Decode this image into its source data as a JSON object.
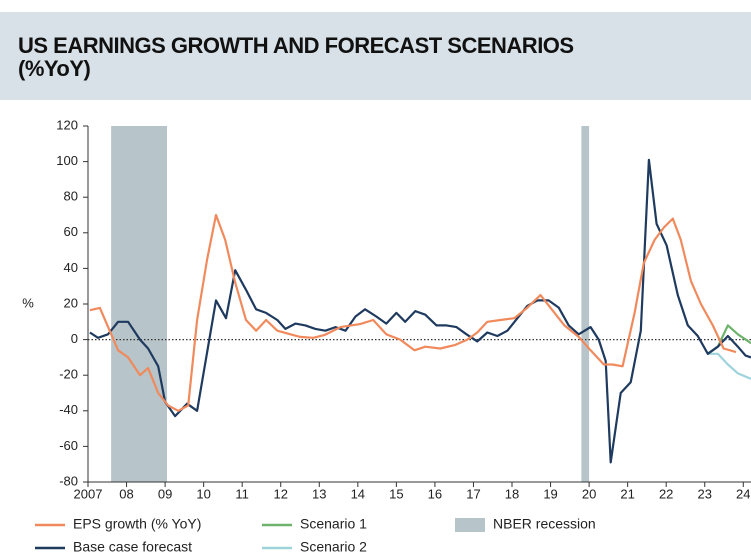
{
  "chart_data": {
    "type": "line",
    "title": "US EARNINGS GROWTH AND FORECAST SCENARIOS (%YoY)",
    "ylabel": "%",
    "xlim": [
      2007,
      2024.2
    ],
    "ylim": [
      -80,
      120
    ],
    "yticks": [
      -80,
      -60,
      -40,
      -20,
      0,
      20,
      40,
      60,
      80,
      100,
      120
    ],
    "xticks": [
      2007,
      {
        "value": 2008,
        "label": "08"
      },
      {
        "value": 2009,
        "label": "09"
      },
      {
        "value": 2010,
        "label": "10"
      },
      {
        "value": 2011,
        "label": "11"
      },
      {
        "value": 2012,
        "label": "12"
      },
      {
        "value": 2013,
        "label": "13"
      },
      {
        "value": 2014,
        "label": "14"
      },
      {
        "value": 2015,
        "label": "15"
      },
      {
        "value": 2016,
        "label": "16"
      },
      {
        "value": 2017,
        "label": "17"
      },
      {
        "value": 2018,
        "label": "18"
      },
      {
        "value": 2019,
        "label": "19"
      },
      {
        "value": 2020,
        "label": "20"
      },
      {
        "value": 2021,
        "label": "21"
      },
      {
        "value": 2022,
        "label": "22"
      },
      {
        "value": 2023,
        "label": "23"
      },
      {
        "value": 2024,
        "label": "24"
      }
    ],
    "zero_line": true,
    "recessions": {
      "name": "NBER recession",
      "color": "#b7c4c9",
      "ranges": [
        [
          2007.6,
          2009.05
        ],
        [
          2019.8,
          2020.0
        ]
      ]
    },
    "series": [
      {
        "name": "EPS growth (% YoY)",
        "color": "#f08a5d",
        "x": [
          2007.05,
          2007.31,
          2007.78,
          2008.04,
          2008.35,
          2008.56,
          2008.82,
          2009.08,
          2009.34,
          2009.6,
          2009.83,
          2010.09,
          2010.32,
          2010.56,
          2010.82,
          2011.1,
          2011.36,
          2011.62,
          2011.91,
          2012.25,
          2012.51,
          2012.84,
          2013.13,
          2013.55,
          2014.06,
          2014.4,
          2014.74,
          2015.1,
          2015.47,
          2015.75,
          2016.14,
          2016.53,
          2016.84,
          2017.1,
          2017.36,
          2017.7,
          2018.06,
          2018.4,
          2018.74,
          2019.03,
          2019.36,
          2019.73,
          2020.04,
          2020.38,
          2020.61,
          2020.87,
          2021.18,
          2021.42,
          2021.7,
          2021.94,
          2022.17,
          2022.38,
          2022.64,
          2022.9,
          2023.21,
          2023.49,
          2023.81
        ],
        "values": [
          16.5,
          17.8,
          -6,
          -10,
          -20,
          -16,
          -30,
          -37,
          -40,
          -37,
          11,
          45,
          70,
          56,
          32,
          11,
          5,
          11,
          5,
          3,
          1.5,
          1,
          2.5,
          7,
          8.7,
          11,
          3,
          0,
          -6,
          -4,
          -5,
          -3,
          0,
          4,
          10,
          11,
          12,
          18,
          25,
          17,
          8,
          1.5,
          -6,
          -14,
          -14,
          -15,
          15,
          43,
          56,
          63,
          68,
          56,
          33,
          20,
          8,
          -5,
          -7
        ]
      },
      {
        "name": "Base case forecast",
        "color": "#1f3a5f",
        "x": [
          2007.05,
          2007.26,
          2007.52,
          2007.78,
          2008.04,
          2008.35,
          2008.56,
          2008.82,
          2009.0,
          2009.26,
          2009.57,
          2009.83,
          2010.32,
          2010.58,
          2010.82,
          2011.1,
          2011.36,
          2011.62,
          2011.91,
          2012.12,
          2012.38,
          2012.64,
          2012.9,
          2013.16,
          2013.42,
          2013.68,
          2013.94,
          2014.19,
          2014.48,
          2014.74,
          2015.0,
          2015.23,
          2015.49,
          2015.75,
          2016.04,
          2016.3,
          2016.56,
          2016.82,
          2017.1,
          2017.36,
          2017.62,
          2017.88,
          2018.14,
          2018.4,
          2018.66,
          2018.95,
          2019.21,
          2019.47,
          2019.73,
          2020.04,
          2020.25,
          2020.43,
          2020.56,
          2020.82,
          2021.08,
          2021.34,
          2021.55,
          2021.75,
          2022.01,
          2022.3,
          2022.56,
          2022.82,
          2023.08,
          2023.34,
          2023.6,
          2023.86,
          2024.06,
          2024.2
        ],
        "values": [
          4,
          1,
          3,
          10,
          10,
          0,
          -5,
          -15,
          -35,
          -43,
          -36,
          -40,
          22,
          12,
          39,
          28,
          17,
          15,
          11,
          6,
          9,
          8,
          6,
          5,
          7,
          5,
          13,
          17,
          13,
          9,
          15,
          10,
          16,
          14,
          8,
          8,
          7,
          3,
          -1,
          4,
          2,
          5,
          12,
          19,
          22,
          22,
          18,
          8,
          3,
          7,
          0,
          -12,
          -69,
          -30,
          -24,
          5,
          101,
          65,
          53,
          25,
          8,
          2,
          -8,
          -4,
          2,
          -4,
          -9,
          -10
        ]
      },
      {
        "name": "Scenario 1",
        "color": "#6db36b",
        "x": [
          2023.08,
          2023.34,
          2023.6,
          2023.86,
          2024.2
        ],
        "values": [
          -8,
          -4,
          8,
          3,
          -2
        ]
      },
      {
        "name": "Scenario 2",
        "color": "#9fd3dc",
        "x": [
          2023.08,
          2023.34,
          2023.6,
          2023.86,
          2024.2
        ],
        "values": [
          -8,
          -8,
          -14,
          -19,
          -22
        ]
      }
    ]
  }
}
